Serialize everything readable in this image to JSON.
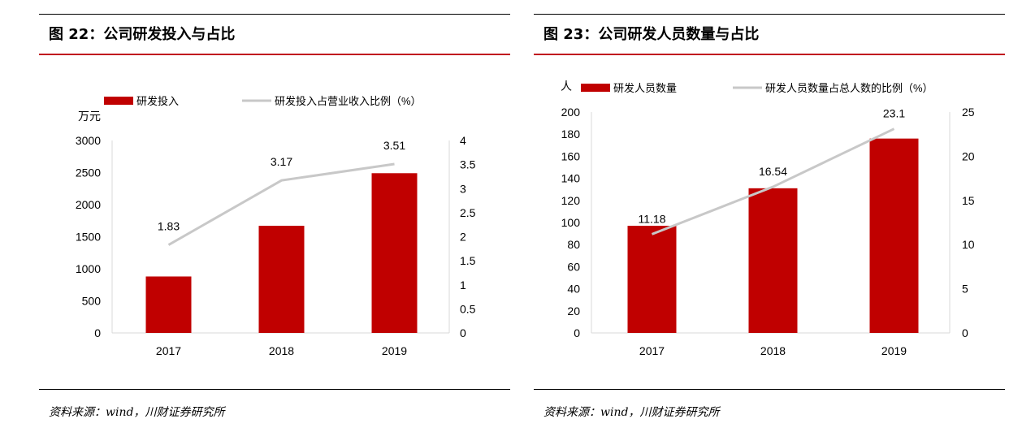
{
  "figures": [
    {
      "title": "图 22：公司研发投入与占比",
      "source": "资料来源：wind，川财证券研究所",
      "chart_data": {
        "type": "bar",
        "categories": [
          "2017",
          "2018",
          "2019"
        ],
        "series": [
          {
            "name": "研发投入",
            "kind": "bar",
            "axis": "left",
            "color": "#c00000",
            "values": [
              880,
              1670,
              2490
            ]
          },
          {
            "name": "研发投入占营业收入比例（%）",
            "kind": "line",
            "axis": "right",
            "color": "#c8c8c8",
            "values": [
              1.83,
              3.17,
              3.51
            ],
            "labels": [
              "1.83",
              "3.17",
              "3.51"
            ]
          }
        ],
        "y_left": {
          "unit_label": "万元",
          "min": 0,
          "max": 3000,
          "ticks": [
            "0",
            "500",
            "1000",
            "1500",
            "2000",
            "2500",
            "3000"
          ]
        },
        "y_right": {
          "min": 0,
          "max": 4,
          "ticks": [
            "0",
            "0.5",
            "1",
            "1.5",
            "2",
            "2.5",
            "3",
            "3.5",
            "4"
          ]
        },
        "grid": false,
        "legend": "top"
      }
    },
    {
      "title": "图 23：公司研发人员数量与占比",
      "source": "资料来源：wind，川财证券研究所",
      "chart_data": {
        "type": "bar",
        "categories": [
          "2017",
          "2018",
          "2019"
        ],
        "series": [
          {
            "name": "研发人员数量",
            "kind": "bar",
            "axis": "left",
            "color": "#c00000",
            "values": [
              97,
              131,
              176
            ]
          },
          {
            "name": "研发人员数量占总人数的比例（%）",
            "kind": "line",
            "axis": "right",
            "color": "#c8c8c8",
            "values": [
              11.18,
              16.54,
              23.1
            ],
            "labels": [
              "11.18",
              "16.54",
              "23.1"
            ]
          }
        ],
        "y_left": {
          "unit_label": "人",
          "min": 0,
          "max": 200,
          "ticks": [
            "0",
            "20",
            "40",
            "60",
            "80",
            "100",
            "120",
            "140",
            "160",
            "180",
            "200"
          ]
        },
        "y_right": {
          "min": 0,
          "max": 25,
          "ticks": [
            "0",
            "5",
            "10",
            "15",
            "20",
            "25"
          ]
        },
        "grid": false,
        "legend": "top"
      }
    }
  ]
}
